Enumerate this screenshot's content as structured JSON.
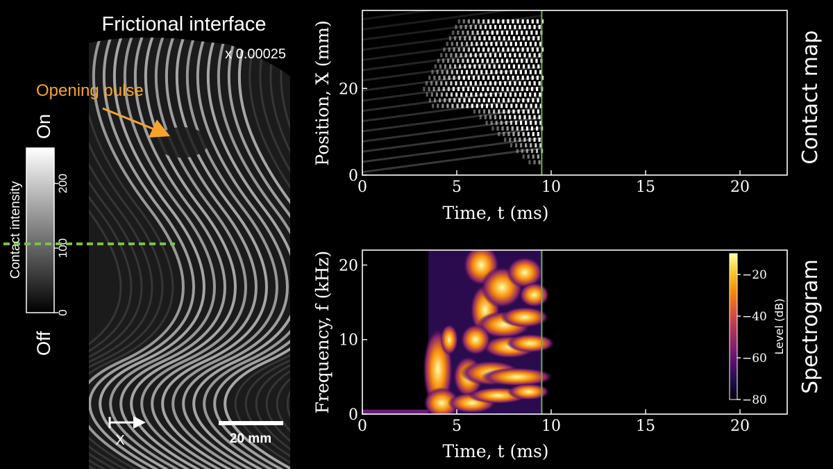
{
  "colors": {
    "background": "#000000",
    "annotation_orange": "#f7a42d",
    "cut_line_green": "#7bbf4a",
    "marker_line_green": "#6fae4b",
    "inferno": [
      "#000004",
      "#1f0c48",
      "#550f6d",
      "#88226a",
      "#ba3655",
      "#e35933",
      "#f98e09",
      "#f8c931",
      "#fcffa4"
    ]
  },
  "left_panel": {
    "title": "Frictional interface",
    "magnification": "x 0.00025",
    "annotation": "Opening pulse",
    "axis_arrow_label": "X",
    "scale_bar_label": "20 mm",
    "colorbar": {
      "label": "Contact intensity",
      "on_label": "On",
      "off_label": "Off",
      "ticks": [
        "0",
        "100",
        "200"
      ],
      "range": [
        0,
        255
      ],
      "cut_level": 100
    }
  },
  "chart_data": [
    {
      "type": "heatmap",
      "panel_title": "Contact map",
      "xlabel": "Time, t (ms)",
      "ylabel": "Position, X (mm)",
      "xlim": [
        0,
        22.5
      ],
      "ylim": [
        0,
        38
      ],
      "xticks": [
        0,
        5,
        10,
        15,
        20
      ],
      "yticks": [
        0,
        20
      ],
      "marker_time_ms": 9.5,
      "grid": false
    },
    {
      "type": "heatmap",
      "panel_title": "Spectrogram",
      "xlabel": "Time, t (ms)",
      "ylabel": "Frequency, f (kHz)",
      "xlim": [
        0,
        22.5
      ],
      "ylim": [
        0,
        22
      ],
      "xticks": [
        0,
        5,
        10,
        15,
        20
      ],
      "yticks": [
        0,
        10,
        20
      ],
      "marker_time_ms": 9.5,
      "colorbar": {
        "label": "Level (dB)",
        "range": [
          -80,
          -10
        ],
        "ticks": [
          "−20",
          "−40",
          "−60",
          "−80"
        ],
        "colormap": "inferno"
      },
      "grid": false
    }
  ]
}
